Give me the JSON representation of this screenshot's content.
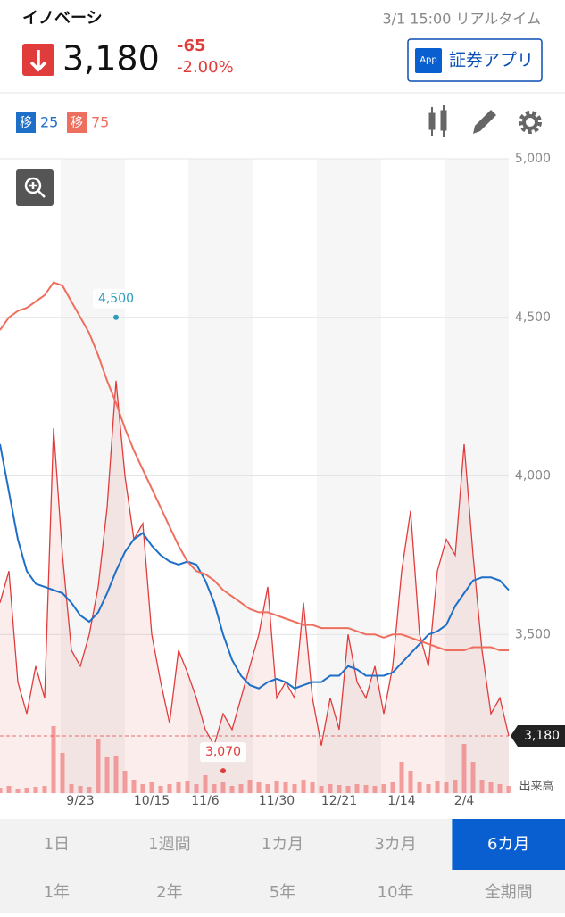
{
  "header": {
    "name": "イノベーシ",
    "time": "3/1 15:00 リアルタイム",
    "price": "3,180",
    "change": "-65",
    "change_pct": "-2.00%",
    "app_icon": "App",
    "app_button": "証券アプリ"
  },
  "legend": {
    "badge": "移"
  },
  "chart_data": {
    "type": "line",
    "x": [
      null,
      null,
      null,
      null,
      null,
      null,
      null,
      null,
      null,
      "9/23",
      null,
      null,
      null,
      null,
      null,
      null,
      null,
      "10/15",
      null,
      null,
      null,
      null,
      null,
      "11/6",
      null,
      null,
      null,
      null,
      null,
      null,
      null,
      "11/30",
      null,
      null,
      null,
      null,
      null,
      null,
      "12/21",
      null,
      null,
      null,
      null,
      null,
      null,
      "1/14",
      null,
      null,
      null,
      null,
      null,
      null,
      "2/4",
      null,
      null,
      null,
      null,
      null
    ],
    "series": [
      {
        "color": "#e03c3c",
        "values": [
          3600,
          3700,
          3350,
          3250,
          3400,
          3300,
          4150,
          3750,
          3450,
          3400,
          3500,
          3650,
          3900,
          4300,
          4000,
          3800,
          3850,
          3500,
          3350,
          3220,
          3450,
          3380,
          3300,
          3200,
          3150,
          3250,
          3200,
          3300,
          3400,
          3500,
          3650,
          3300,
          3350,
          3300,
          3600,
          3300,
          3150,
          3300,
          3200,
          3500,
          3350,
          3300,
          3400,
          3250,
          3400,
          3700,
          3890,
          3500,
          3400,
          3700,
          3800,
          3750,
          4100,
          3750,
          3450,
          3250,
          3300,
          3180
        ]
      },
      {
        "name": "25",
        "color": "#1e6fc8",
        "values": [
          4100,
          3950,
          3800,
          3700,
          3660,
          3650,
          3640,
          3630,
          3600,
          3560,
          3540,
          3570,
          3630,
          3700,
          3760,
          3800,
          3820,
          3780,
          3750,
          3730,
          3720,
          3730,
          3720,
          3670,
          3600,
          3500,
          3420,
          3370,
          3340,
          3330,
          3350,
          3360,
          3350,
          3330,
          3340,
          3350,
          3350,
          3370,
          3370,
          3400,
          3390,
          3370,
          3370,
          3370,
          3380,
          3410,
          3440,
          3470,
          3500,
          3510,
          3530,
          3590,
          3630,
          3670,
          3680,
          3680,
          3670,
          3640
        ]
      },
      {
        "name": "75",
        "color": "#ef6f5e",
        "values": [
          4460,
          4500,
          4520,
          4530,
          4550,
          4570,
          4610,
          4600,
          4550,
          4500,
          4450,
          4380,
          4300,
          4230,
          4150,
          4080,
          4020,
          3960,
          3900,
          3840,
          3780,
          3730,
          3700,
          3690,
          3670,
          3640,
          3620,
          3600,
          3580,
          3570,
          3570,
          3560,
          3550,
          3540,
          3530,
          3530,
          3520,
          3520,
          3520,
          3520,
          3510,
          3500,
          3500,
          3490,
          3500,
          3500,
          3490,
          3480,
          3470,
          3460,
          3450,
          3450,
          3450,
          3460,
          3460,
          3460,
          3450,
          3450
        ]
      }
    ],
    "volume": {
      "label": "出来高",
      "color": "#f08a8a",
      "values": [
        6,
        8,
        5,
        6,
        7,
        8,
        75,
        45,
        10,
        8,
        7,
        60,
        40,
        42,
        25,
        15,
        10,
        12,
        8,
        10,
        12,
        14,
        10,
        20,
        10,
        12,
        8,
        10,
        15,
        12,
        10,
        14,
        12,
        10,
        15,
        12,
        8,
        10,
        9,
        8,
        10,
        9,
        8,
        10,
        12,
        35,
        25,
        12,
        10,
        14,
        12,
        15,
        55,
        35,
        15,
        12,
        10,
        8
      ]
    },
    "ylim": [
      3000,
      5000
    ],
    "yticks": [
      {
        "value": 3500,
        "label": "3,500"
      },
      {
        "value": 4000,
        "label": "4,000"
      },
      {
        "value": 4500,
        "label": "4,500"
      },
      {
        "value": 5000,
        "label": "5,000"
      }
    ],
    "grid": true,
    "annotations": [
      {
        "at": 13,
        "value": 4500,
        "label": "4,500",
        "color": "#2a9bb8"
      },
      {
        "at": 25,
        "value": 3070,
        "label": "3,070",
        "color": "#e03c3c"
      }
    ],
    "current": {
      "value": 3180,
      "label": "3,180"
    }
  },
  "tabs": [
    "1日",
    "1週間",
    "1カ月",
    "3カ月",
    "6カ月",
    "1年",
    "2年",
    "5年",
    "10年",
    "全期間"
  ],
  "selected_tab": 4
}
